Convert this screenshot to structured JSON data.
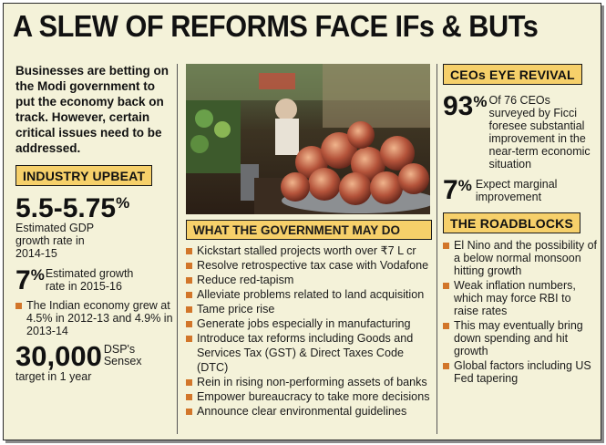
{
  "headline": "A SLEW OF REFORMS FACE IFs & BUTs",
  "intro": "Businesses are betting on the Modi government to put the economy back on track. However, certain critical issues need to be addressed.",
  "industry": {
    "heading": "INDUSTRY UPBEAT",
    "gdp_value": "5.5-5.75",
    "gdp_unit": "%",
    "gdp_label": "Estimated GDP growth rate in 2014-15",
    "growth_value": "7",
    "growth_unit": "%",
    "growth_label_line1": "Estimated growth",
    "growth_label_line2": "rate in 2015-16",
    "economy_note": "The Indian economy grew at 4.5% in 2012-13 and 4.9% in 2013-14",
    "sensex_value": "30,000",
    "sensex_label_line1": "DSP's",
    "sensex_label_line2": "Sensex",
    "sensex_label_line3": "target in 1 year"
  },
  "government": {
    "heading": "WHAT THE GOVERNMENT MAY DO",
    "items": [
      "Kickstart stalled projects worth over ₹7 L cr",
      "Resolve retrospective tax case with Vodafone",
      "Reduce red-tapism",
      "Alleviate problems related to land acquisition",
      "Tame price rise",
      "Generate jobs especially in manufacturing",
      "Introduce tax reforms including Goods and Services Tax (GST) & Direct Taxes Code (DTC)",
      "Rein in rising non-performing assets of banks",
      "Empower bureaucracy to take more decisions",
      "Announce clear environmental guidelines"
    ]
  },
  "ceos": {
    "heading": "CEOs EYE REVIVAL",
    "stat1_value": "93",
    "stat1_unit": "%",
    "stat1_text": "Of 76 CEOs surveyed by Ficci foresee substantial improvement in the near-term economic situation",
    "stat2_value": "7",
    "stat2_unit": "%",
    "stat2_text": "Expect marginal improvement"
  },
  "roadblocks": {
    "heading": "THE ROADBLOCKS",
    "items": [
      "El Nino and the possibility of a below normal monsoon hitting growth",
      "Weak inflation numbers, which may force RBI to raise rates",
      "This may eventually bring down spending and hit growth",
      "Global factors including US Fed tapering"
    ]
  },
  "colors": {
    "background": "#f4f2d9",
    "heading_fill": "#f6d06a",
    "bullet": "#d2762a"
  },
  "photo_icon": "onion-market-photo"
}
